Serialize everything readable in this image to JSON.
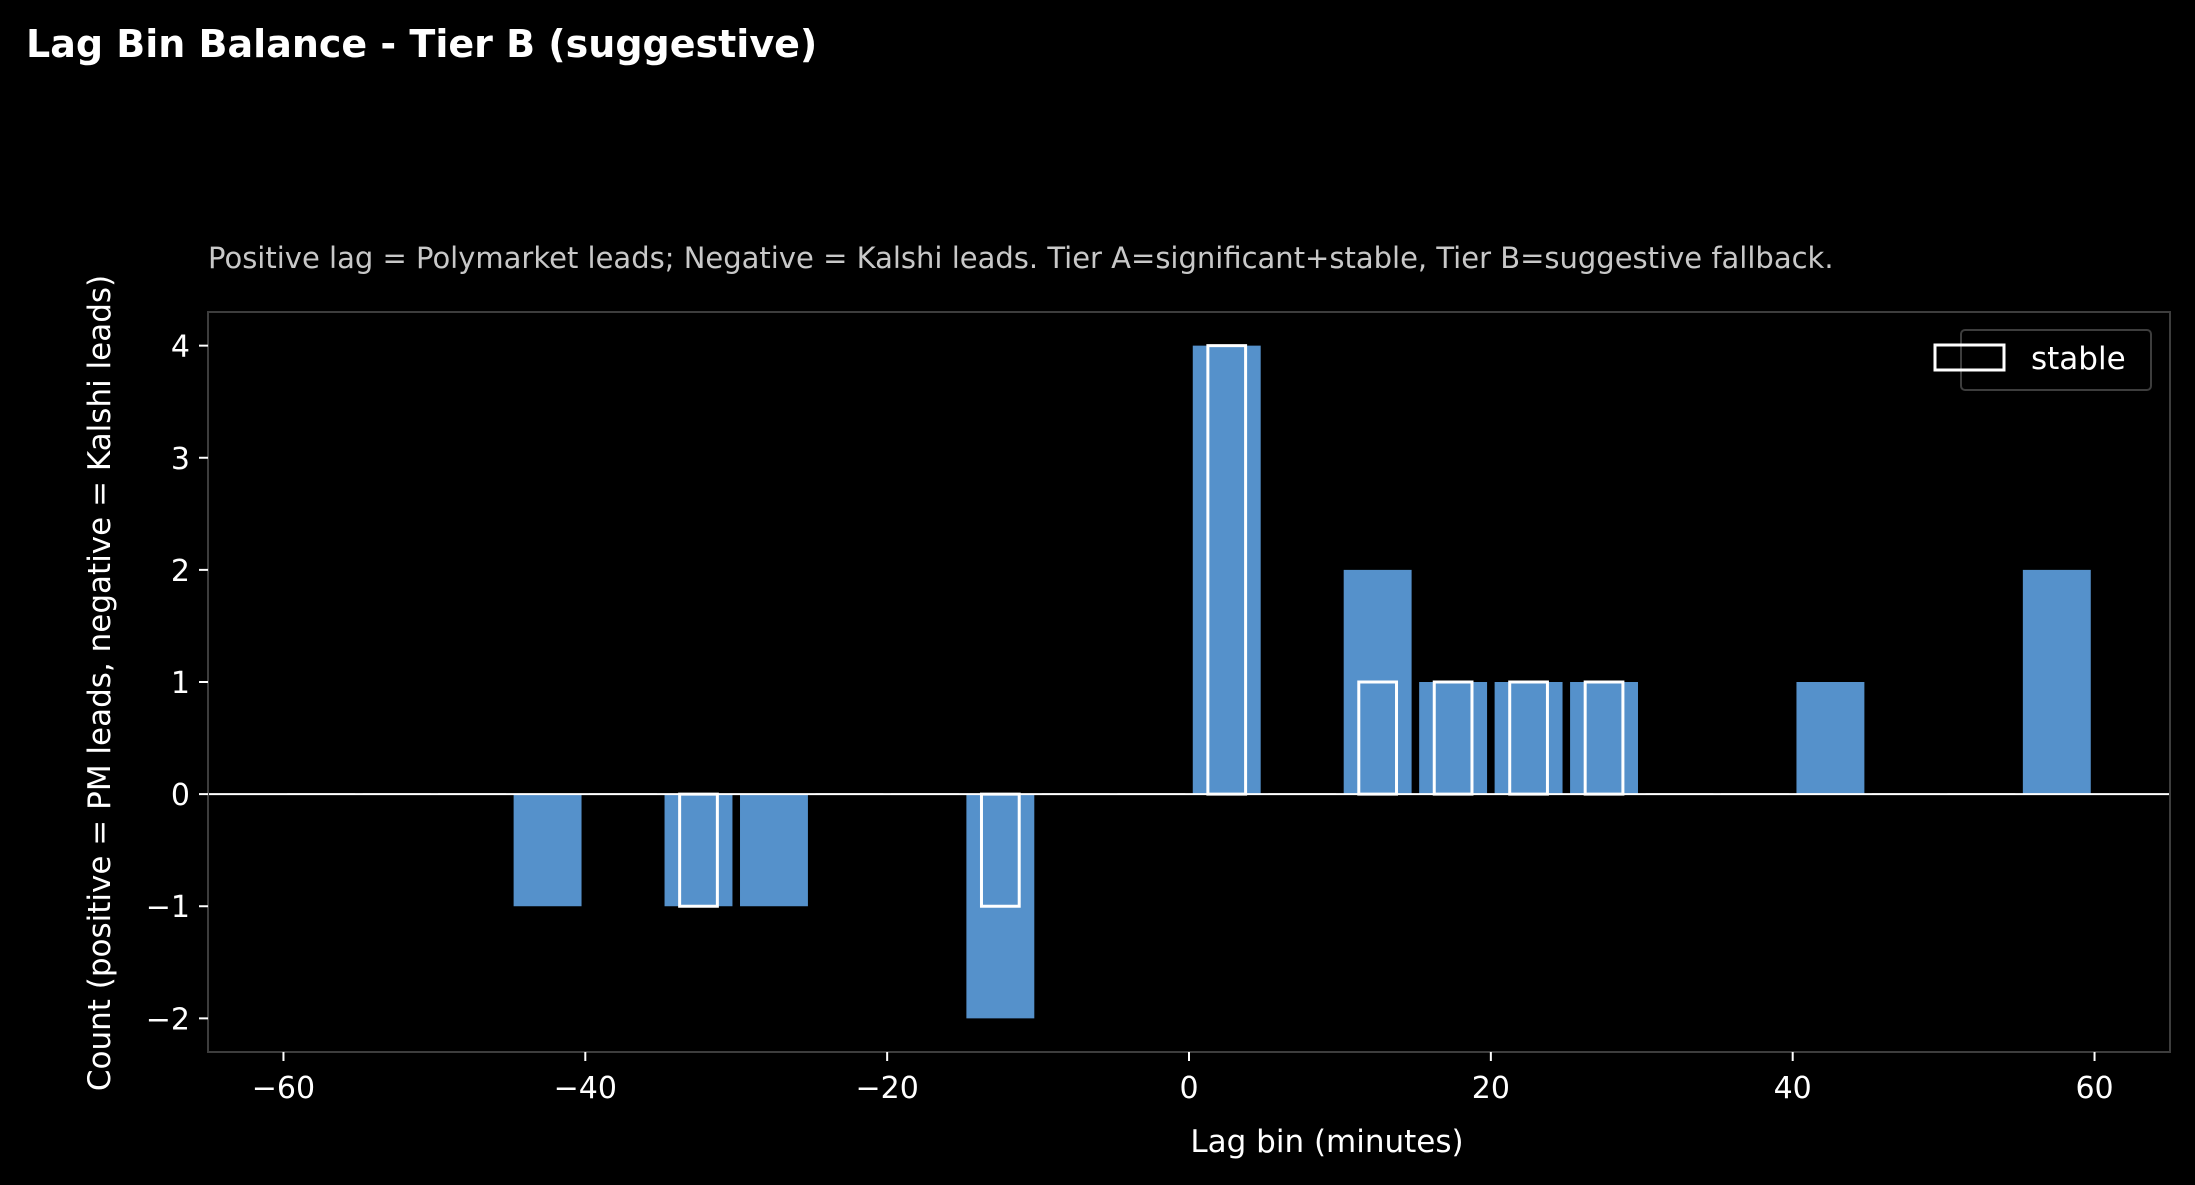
{
  "chart_data": {
    "type": "bar",
    "title": "Lag Bin Balance - Tier B (suggestive)",
    "subtitle": "Positive lag = Polymarket leads; Negative = Kalshi leads. Tier A=significant+stable, Tier B=suggestive fallback.",
    "xlabel": "Lag bin (minutes)",
    "ylabel": "Count (positive = PM leads, negative = Kalshi leads)",
    "xlim": [
      -65,
      65
    ],
    "ylim": [
      -2.3,
      4.3
    ],
    "xticks": [
      -60,
      -40,
      -20,
      0,
      20,
      40,
      60
    ],
    "xtick_labels": [
      "−60",
      "−40",
      "−20",
      "0",
      "20",
      "40",
      "60"
    ],
    "yticks": [
      -2,
      -1,
      0,
      1,
      2,
      3,
      4
    ],
    "ytick_labels": [
      "−2",
      "−1",
      "0",
      "1",
      "2",
      "3",
      "4"
    ],
    "bar_width": 4.5,
    "stable_width": 2.5,
    "x": [
      -57.5,
      -52.5,
      -47.5,
      -42.5,
      -37.5,
      -32.5,
      -27.5,
      -22.5,
      -17.5,
      -12.5,
      -7.5,
      -2.5,
      2.5,
      7.5,
      12.5,
      17.5,
      22.5,
      27.5,
      32.5,
      37.5,
      42.5,
      47.5,
      52.5,
      57.5
    ],
    "values": [
      0,
      0,
      0,
      -1,
      0,
      -1,
      -1,
      0,
      0,
      -2,
      0,
      0,
      4,
      0,
      2,
      1,
      1,
      1,
      0,
      0,
      1,
      0,
      0,
      2
    ],
    "series": [
      {
        "name": "stable",
        "values": [
          0,
          0,
          0,
          0,
          0,
          -1,
          0,
          0,
          0,
          -1,
          0,
          0,
          4,
          0,
          1,
          1,
          1,
          1,
          0,
          0,
          0,
          0,
          0,
          0
        ]
      }
    ],
    "bar_color": "#5591cb",
    "stable_edge_color": "#ffffff",
    "legend": "top-right",
    "grid": false
  }
}
